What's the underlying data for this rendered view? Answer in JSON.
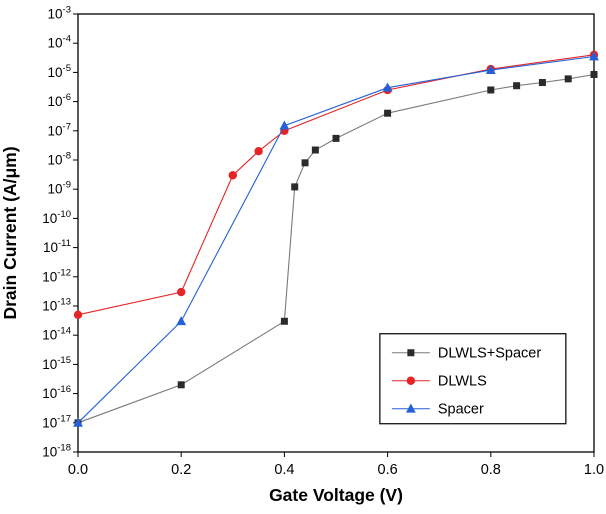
{
  "figure": {
    "background": "#ffffff",
    "border_color": "#000000"
  },
  "chart_data": {
    "type": "line",
    "title": "",
    "xlabel": "Gate Voltage (V)",
    "ylabel": "Drain Current (A/μm)",
    "xlim": [
      0.0,
      1.0
    ],
    "x_ticks": [
      0.0,
      0.2,
      0.4,
      0.6,
      0.8,
      1.0
    ],
    "x_tick_labels": [
      "0.0",
      "0.2",
      "0.4",
      "0.6",
      "0.8",
      "1.0"
    ],
    "y_scale": "log",
    "y_exp_min": -18,
    "y_exp_max": -3,
    "y_tick_exponents": [
      -3,
      -4,
      -5,
      -6,
      -7,
      -8,
      -9,
      -10,
      -11,
      -12,
      -13,
      -14,
      -15,
      -16,
      -17,
      -18
    ],
    "grid": false,
    "legend": {
      "position": "lower-right",
      "border_color": "#000000",
      "background": "#ffffff",
      "entries": [
        "DLWLS+Spacer",
        "DLWLS",
        "Spacer"
      ]
    },
    "series": [
      {
        "name": "DLWLS+Spacer",
        "marker": "square",
        "color": "#2b2b2b",
        "line_color": "#7a7a7a",
        "points": [
          [
            0.0,
            1e-17
          ],
          [
            0.2,
            2e-16
          ],
          [
            0.4,
            3e-14
          ],
          [
            0.42,
            1.2e-09
          ],
          [
            0.44,
            8e-09
          ],
          [
            0.46,
            2.2e-08
          ],
          [
            0.5,
            5.5e-08
          ],
          [
            0.6,
            4e-07
          ],
          [
            0.8,
            2.5e-06
          ],
          [
            0.85,
            3.5e-06
          ],
          [
            0.9,
            4.5e-06
          ],
          [
            0.95,
            6e-06
          ],
          [
            1.0,
            8.5e-06
          ]
        ]
      },
      {
        "name": "DLWLS",
        "marker": "circle",
        "color": "#e62425",
        "line_color": "#e62425",
        "points": [
          [
            0.0,
            5e-14
          ],
          [
            0.2,
            3e-13
          ],
          [
            0.3,
            3e-09
          ],
          [
            0.35,
            2e-08
          ],
          [
            0.4,
            1e-07
          ],
          [
            0.6,
            2.5e-06
          ],
          [
            0.8,
            1.3e-05
          ],
          [
            1.0,
            4e-05
          ]
        ]
      },
      {
        "name": "Spacer",
        "marker": "triangle",
        "color": "#2461d9",
        "line_color": "#2461d9",
        "points": [
          [
            0.0,
            1e-17
          ],
          [
            0.2,
            3e-14
          ],
          [
            0.4,
            1.5e-07
          ],
          [
            0.6,
            3e-06
          ],
          [
            0.8,
            1.2e-05
          ],
          [
            1.0,
            3.5e-05
          ]
        ]
      }
    ]
  }
}
